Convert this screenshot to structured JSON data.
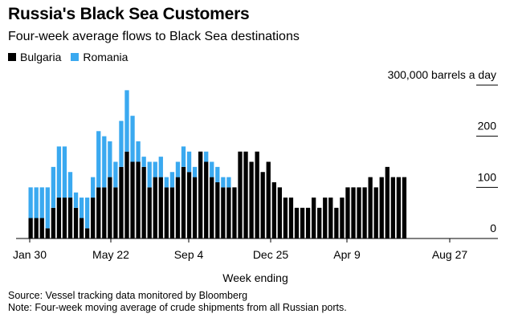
{
  "title": "Russia's Black Sea Customers",
  "subtitle": "Four-week average flows to Black Sea destinations",
  "source": "Source: Vessel tracking data monitored by Bloomberg",
  "note": "Note: Four-week moving average of crude shipments from all Russian ports.",
  "colors": {
    "bulgaria": "#000000",
    "romania": "#3aa9f0"
  },
  "chart_data": {
    "type": "bar",
    "stacked": true,
    "title": "Russia's Black Sea Customers",
    "subtitle": "Four-week average flows to Black Sea destinations",
    "xlabel": "Week ending",
    "ylabel": "300,000 barrels a day",
    "ylim": [
      0,
      300000
    ],
    "yticks": [
      0,
      100000,
      200000,
      300000
    ],
    "ytick_labels": [
      "0",
      "100",
      "200",
      "300,000 barrels a day"
    ],
    "xtick_labels": [
      "Jan 30",
      "May 22",
      "Sep 4",
      "Dec 25",
      "Apr 9",
      "Aug 27"
    ],
    "grid": true,
    "legend": "top-left",
    "series": [
      {
        "name": "Bulgaria",
        "values": [
          40000,
          40000,
          40000,
          20000,
          60000,
          80000,
          80000,
          80000,
          60000,
          40000,
          20000,
          80000,
          100000,
          100000,
          120000,
          100000,
          140000,
          170000,
          150000,
          150000,
          140000,
          100000,
          120000,
          120000,
          100000,
          100000,
          120000,
          140000,
          130000,
          120000,
          170000,
          150000,
          120000,
          110000,
          100000,
          100000,
          100000,
          170000,
          170000,
          150000,
          170000,
          130000,
          150000,
          110000,
          100000,
          80000,
          80000,
          60000,
          60000,
          60000,
          80000,
          60000,
          80000,
          80000,
          60000,
          80000,
          100000,
          100000,
          100000,
          100000,
          120000,
          100000,
          120000,
          140000,
          120000,
          120000,
          120000
        ]
      },
      {
        "name": "Romania",
        "values": [
          60000,
          60000,
          60000,
          80000,
          80000,
          100000,
          100000,
          50000,
          30000,
          40000,
          60000,
          40000,
          110000,
          100000,
          70000,
          50000,
          90000,
          120000,
          90000,
          40000,
          20000,
          50000,
          30000,
          40000,
          20000,
          30000,
          30000,
          40000,
          40000,
          20000,
          0,
          20000,
          30000,
          30000,
          20000,
          20000,
          0,
          0,
          0,
          0,
          0,
          0,
          0,
          0,
          0,
          0,
          0,
          0,
          0,
          0,
          0,
          0,
          0,
          0,
          0,
          0,
          0,
          0,
          0,
          0,
          0,
          0,
          0,
          0,
          0,
          0,
          0
        ]
      }
    ]
  }
}
